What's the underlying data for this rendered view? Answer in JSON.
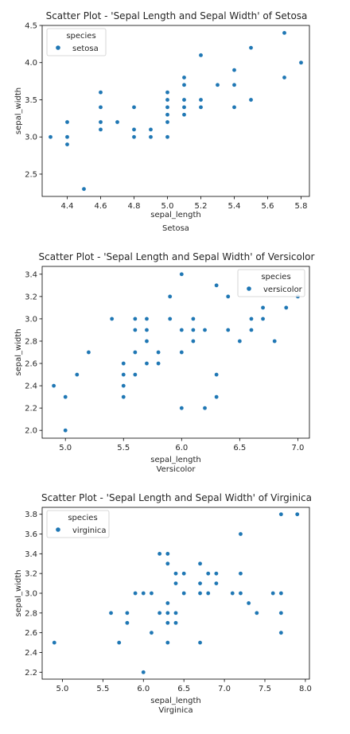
{
  "chart_data": [
    {
      "type": "scatter",
      "title": "Scatter Plot - 'Sepal Length and Sepal Width' of Setosa",
      "xlabel": "sepal_length",
      "ylabel": "sepal_width",
      "subtitle": "Setosa",
      "xlim": [
        4.25,
        5.85
      ],
      "ylim": [
        2.2,
        4.5
      ],
      "xticks": [
        4.4,
        4.6,
        4.8,
        5.0,
        5.2,
        5.4,
        5.6,
        5.8
      ],
      "xtick_labels": [
        "4.4",
        "4.6",
        "4.8",
        "5.0",
        "5.2",
        "5.4",
        "5.6",
        "5.8"
      ],
      "yticks": [
        2.5,
        3.0,
        3.5,
        4.0,
        4.5
      ],
      "ytick_labels": [
        "2.5",
        "3.0",
        "3.5",
        "4.0",
        "4.5"
      ],
      "legend": {
        "title": "species",
        "placement": "upper-left"
      },
      "grid": false,
      "series": [
        {
          "name": "setosa",
          "color": "#1f77b4",
          "points": [
            [
              4.3,
              3.0
            ],
            [
              4.4,
              3.2
            ],
            [
              4.4,
              3.0
            ],
            [
              4.4,
              2.9
            ],
            [
              4.5,
              2.3
            ],
            [
              4.6,
              3.6
            ],
            [
              4.6,
              3.4
            ],
            [
              4.6,
              3.2
            ],
            [
              4.6,
              3.1
            ],
            [
              4.7,
              3.2
            ],
            [
              4.8,
              3.4
            ],
            [
              4.8,
              3.1
            ],
            [
              4.8,
              3.0
            ],
            [
              4.9,
              3.1
            ],
            [
              4.9,
              3.0
            ],
            [
              5.0,
              3.6
            ],
            [
              5.0,
              3.5
            ],
            [
              5.0,
              3.4
            ],
            [
              5.0,
              3.3
            ],
            [
              5.0,
              3.2
            ],
            [
              5.0,
              3.0
            ],
            [
              5.1,
              3.8
            ],
            [
              5.1,
              3.7
            ],
            [
              5.1,
              3.5
            ],
            [
              5.1,
              3.4
            ],
            [
              5.1,
              3.3
            ],
            [
              5.2,
              4.1
            ],
            [
              5.2,
              3.5
            ],
            [
              5.2,
              3.4
            ],
            [
              5.3,
              3.7
            ],
            [
              5.4,
              3.9
            ],
            [
              5.4,
              3.7
            ],
            [
              5.4,
              3.4
            ],
            [
              5.5,
              4.2
            ],
            [
              5.5,
              3.5
            ],
            [
              5.7,
              4.4
            ],
            [
              5.7,
              3.8
            ],
            [
              5.8,
              4.0
            ]
          ]
        }
      ]
    },
    {
      "type": "scatter",
      "title": "Scatter Plot - 'Sepal Length and Sepal Width' of Versicolor",
      "xlabel": "sepal_length",
      "ylabel": "sepal_width",
      "subtitle": "Versicolor",
      "xlim": [
        4.8,
        7.1
      ],
      "ylim": [
        1.93,
        3.47
      ],
      "xticks": [
        5.0,
        5.5,
        6.0,
        6.5,
        7.0
      ],
      "xtick_labels": [
        "5.0",
        "5.5",
        "6.0",
        "6.5",
        "7.0"
      ],
      "yticks": [
        2.0,
        2.2,
        2.4,
        2.6,
        2.8,
        3.0,
        3.2,
        3.4
      ],
      "ytick_labels": [
        "2.0",
        "2.2",
        "2.4",
        "2.6",
        "2.8",
        "3.0",
        "3.2",
        "3.4"
      ],
      "legend": {
        "title": "species",
        "placement": "upper-right"
      },
      "grid": false,
      "series": [
        {
          "name": "versicolor",
          "color": "#1f77b4",
          "points": [
            [
              4.9,
              2.4
            ],
            [
              5.0,
              2.3
            ],
            [
              5.0,
              2.0
            ],
            [
              5.1,
              2.5
            ],
            [
              5.2,
              2.7
            ],
            [
              5.4,
              3.0
            ],
            [
              5.5,
              2.6
            ],
            [
              5.5,
              2.5
            ],
            [
              5.5,
              2.4
            ],
            [
              5.5,
              2.3
            ],
            [
              5.6,
              3.0
            ],
            [
              5.6,
              2.9
            ],
            [
              5.6,
              2.7
            ],
            [
              5.6,
              2.5
            ],
            [
              5.7,
              3.0
            ],
            [
              5.7,
              2.9
            ],
            [
              5.7,
              2.8
            ],
            [
              5.7,
              2.6
            ],
            [
              5.8,
              2.7
            ],
            [
              5.8,
              2.6
            ],
            [
              5.9,
              3.2
            ],
            [
              5.9,
              3.0
            ],
            [
              6.0,
              3.4
            ],
            [
              6.0,
              2.9
            ],
            [
              6.0,
              2.7
            ],
            [
              6.0,
              2.2
            ],
            [
              6.1,
              3.0
            ],
            [
              6.1,
              2.9
            ],
            [
              6.1,
              2.8
            ],
            [
              6.2,
              2.9
            ],
            [
              6.2,
              2.2
            ],
            [
              6.3,
              3.3
            ],
            [
              6.3,
              2.5
            ],
            [
              6.3,
              2.3
            ],
            [
              6.4,
              3.2
            ],
            [
              6.4,
              2.9
            ],
            [
              6.5,
              2.8
            ],
            [
              6.6,
              3.0
            ],
            [
              6.6,
              2.9
            ],
            [
              6.7,
              3.1
            ],
            [
              6.7,
              3.0
            ],
            [
              6.8,
              2.8
            ],
            [
              6.9,
              3.1
            ],
            [
              7.0,
              3.2
            ]
          ]
        }
      ]
    },
    {
      "type": "scatter",
      "title": "Scatter Plot - 'Sepal Length and Sepal Width' of Virginica",
      "xlabel": "sepal_length",
      "ylabel": "sepal_width",
      "subtitle": "Virginica",
      "xlim": [
        4.75,
        8.05
      ],
      "ylim": [
        2.13,
        3.87
      ],
      "xticks": [
        5.0,
        5.5,
        6.0,
        6.5,
        7.0,
        7.5,
        8.0
      ],
      "xtick_labels": [
        "5.0",
        "5.5",
        "6.0",
        "6.5",
        "7.0",
        "7.5",
        "8.0"
      ],
      "yticks": [
        2.2,
        2.4,
        2.6,
        2.8,
        3.0,
        3.2,
        3.4,
        3.6,
        3.8
      ],
      "ytick_labels": [
        "2.2",
        "2.4",
        "2.6",
        "2.8",
        "3.0",
        "3.2",
        "3.4",
        "3.6",
        "3.8"
      ],
      "legend": {
        "title": "species",
        "placement": "upper-left"
      },
      "grid": false,
      "series": [
        {
          "name": "virginica",
          "color": "#1f77b4",
          "points": [
            [
              4.9,
              2.5
            ],
            [
              5.6,
              2.8
            ],
            [
              5.7,
              2.5
            ],
            [
              5.8,
              2.8
            ],
            [
              5.8,
              2.7
            ],
            [
              5.9,
              3.0
            ],
            [
              6.0,
              3.0
            ],
            [
              6.0,
              2.2
            ],
            [
              6.1,
              3.0
            ],
            [
              6.1,
              2.6
            ],
            [
              6.2,
              3.4
            ],
            [
              6.2,
              2.8
            ],
            [
              6.3,
              3.4
            ],
            [
              6.3,
              3.3
            ],
            [
              6.3,
              2.9
            ],
            [
              6.3,
              2.8
            ],
            [
              6.3,
              2.7
            ],
            [
              6.3,
              2.5
            ],
            [
              6.4,
              3.2
            ],
            [
              6.4,
              3.1
            ],
            [
              6.4,
              2.8
            ],
            [
              6.4,
              2.7
            ],
            [
              6.5,
              3.2
            ],
            [
              6.5,
              3.0
            ],
            [
              6.7,
              3.3
            ],
            [
              6.7,
              3.1
            ],
            [
              6.7,
              3.0
            ],
            [
              6.7,
              2.5
            ],
            [
              6.8,
              3.2
            ],
            [
              6.8,
              3.0
            ],
            [
              6.9,
              3.2
            ],
            [
              6.9,
              3.1
            ],
            [
              7.1,
              3.0
            ],
            [
              7.2,
              3.6
            ],
            [
              7.2,
              3.2
            ],
            [
              7.2,
              3.0
            ],
            [
              7.3,
              2.9
            ],
            [
              7.4,
              2.8
            ],
            [
              7.6,
              3.0
            ],
            [
              7.7,
              3.8
            ],
            [
              7.7,
              3.0
            ],
            [
              7.7,
              2.8
            ],
            [
              7.7,
              2.6
            ],
            [
              7.9,
              3.8
            ]
          ]
        }
      ]
    }
  ]
}
